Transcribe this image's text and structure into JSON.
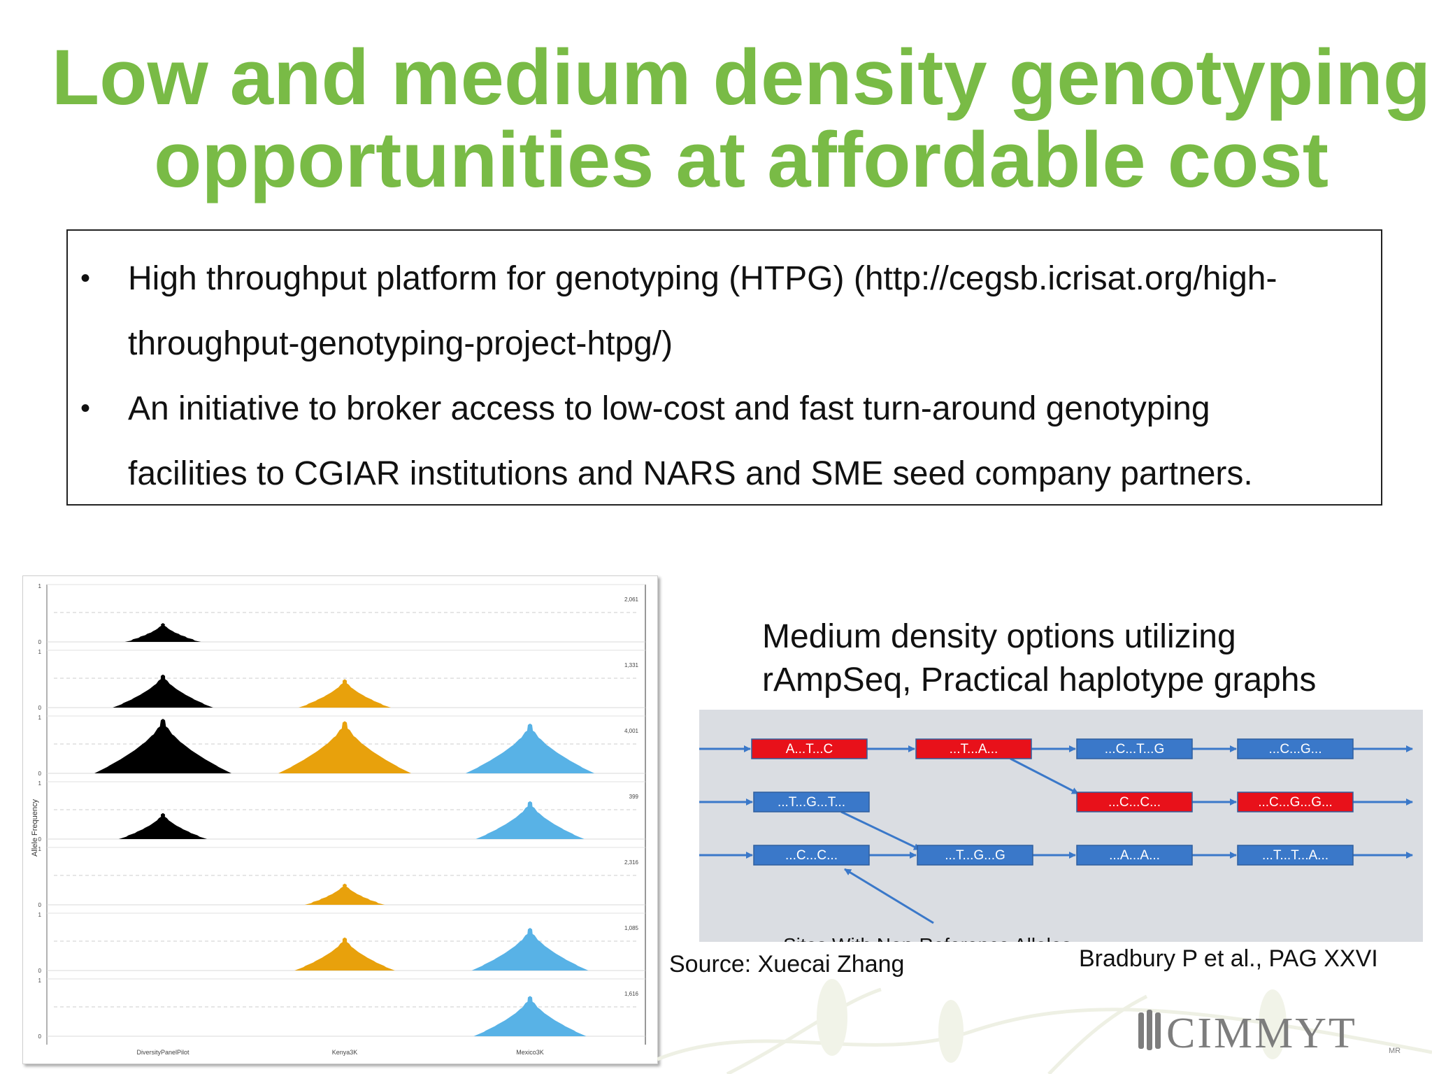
{
  "slide": {
    "title_line1": "Low and medium density genotyping",
    "title_line2": "opportunities at affordable cost",
    "title_color": "#79bb46",
    "bullets": [
      {
        "marker": "•",
        "line1": "High throughput platform for genotyping (HTPG) (http://cegsb.icrisat.org/high-",
        "line2": "throughput-genotyping-project-htpg/)"
      },
      {
        "marker": "•",
        "line1": "An initiative to broker access to low-cost and fast turn-around genotyping",
        "line2": "facilities to CGIAR institutions and NARS and SME seed company partners."
      }
    ],
    "medium_text_line1": "Medium density options utilizing",
    "medium_text_line2": "rAmpSeq, Practical haplotype graphs",
    "source_left": "Source: Xuecai Zhang",
    "source_right": "Bradbury P et al., PAG XXVI",
    "logo_text": "CIMMYT",
    "logo_mark": "MR"
  },
  "chart": {
    "y_axis_label": "Allele Frequency",
    "columns": [
      "DiversityPanelPilot",
      "Kenya3K",
      "Mexico3K"
    ],
    "colors": {
      "DiversityPanelPilot": "#000000",
      "Kenya3K": "#e8a10c",
      "Mexico3K": "#58b2e6"
    },
    "rows": [
      {
        "count": "2,061",
        "tick_top": "1",
        "tick_bottom": "0",
        "present": [
          0.25,
          0,
          0
        ]
      },
      {
        "count": "1,331",
        "tick_top": "1",
        "tick_bottom": "0",
        "present": [
          0.55,
          0.45,
          0
        ]
      },
      {
        "count": "4,001",
        "tick_top": "1",
        "tick_bottom": "0",
        "present": [
          1.0,
          0.95,
          0.9
        ]
      },
      {
        "count": "399",
        "tick_top": "1",
        "tick_bottom": "0",
        "present": [
          0.4,
          0,
          0.65
        ]
      },
      {
        "count": "2,316",
        "tick_top": "1",
        "tick_bottom": "0",
        "present": [
          0,
          0.3,
          0
        ]
      },
      {
        "count": "1,085",
        "tick_top": "1",
        "tick_bottom": "0",
        "present": [
          0,
          0.55,
          0.75
        ]
      },
      {
        "count": "1,616",
        "tick_top": "1",
        "tick_bottom": "0",
        "present": [
          0,
          0,
          0.7
        ]
      }
    ]
  },
  "graph": {
    "nodes": [
      {
        "label": "A...T...C",
        "color": "#e8111a"
      },
      {
        "label": "...T...A...",
        "color": "#e8111a"
      },
      {
        "label": "...C...T...G",
        "color": "#3a78c9"
      },
      {
        "label": "...C...G...",
        "color": "#3a78c9"
      },
      {
        "label": "...T...G...T...",
        "color": "#3a78c9"
      },
      {
        "label": "...C...C...",
        "color": "#e8111a"
      },
      {
        "label": "...C...G...G...",
        "color": "#e8111a"
      },
      {
        "label": "...C...C...",
        "color": "#3a78c9"
      },
      {
        "label": "...T...G...G",
        "color": "#3a78c9"
      },
      {
        "label": "...A...A...",
        "color": "#3a78c9"
      },
      {
        "label": "...T...T...A...",
        "color": "#3a78c9"
      }
    ],
    "cut_off_caption": "Sites With Non-Reference Alleles"
  }
}
